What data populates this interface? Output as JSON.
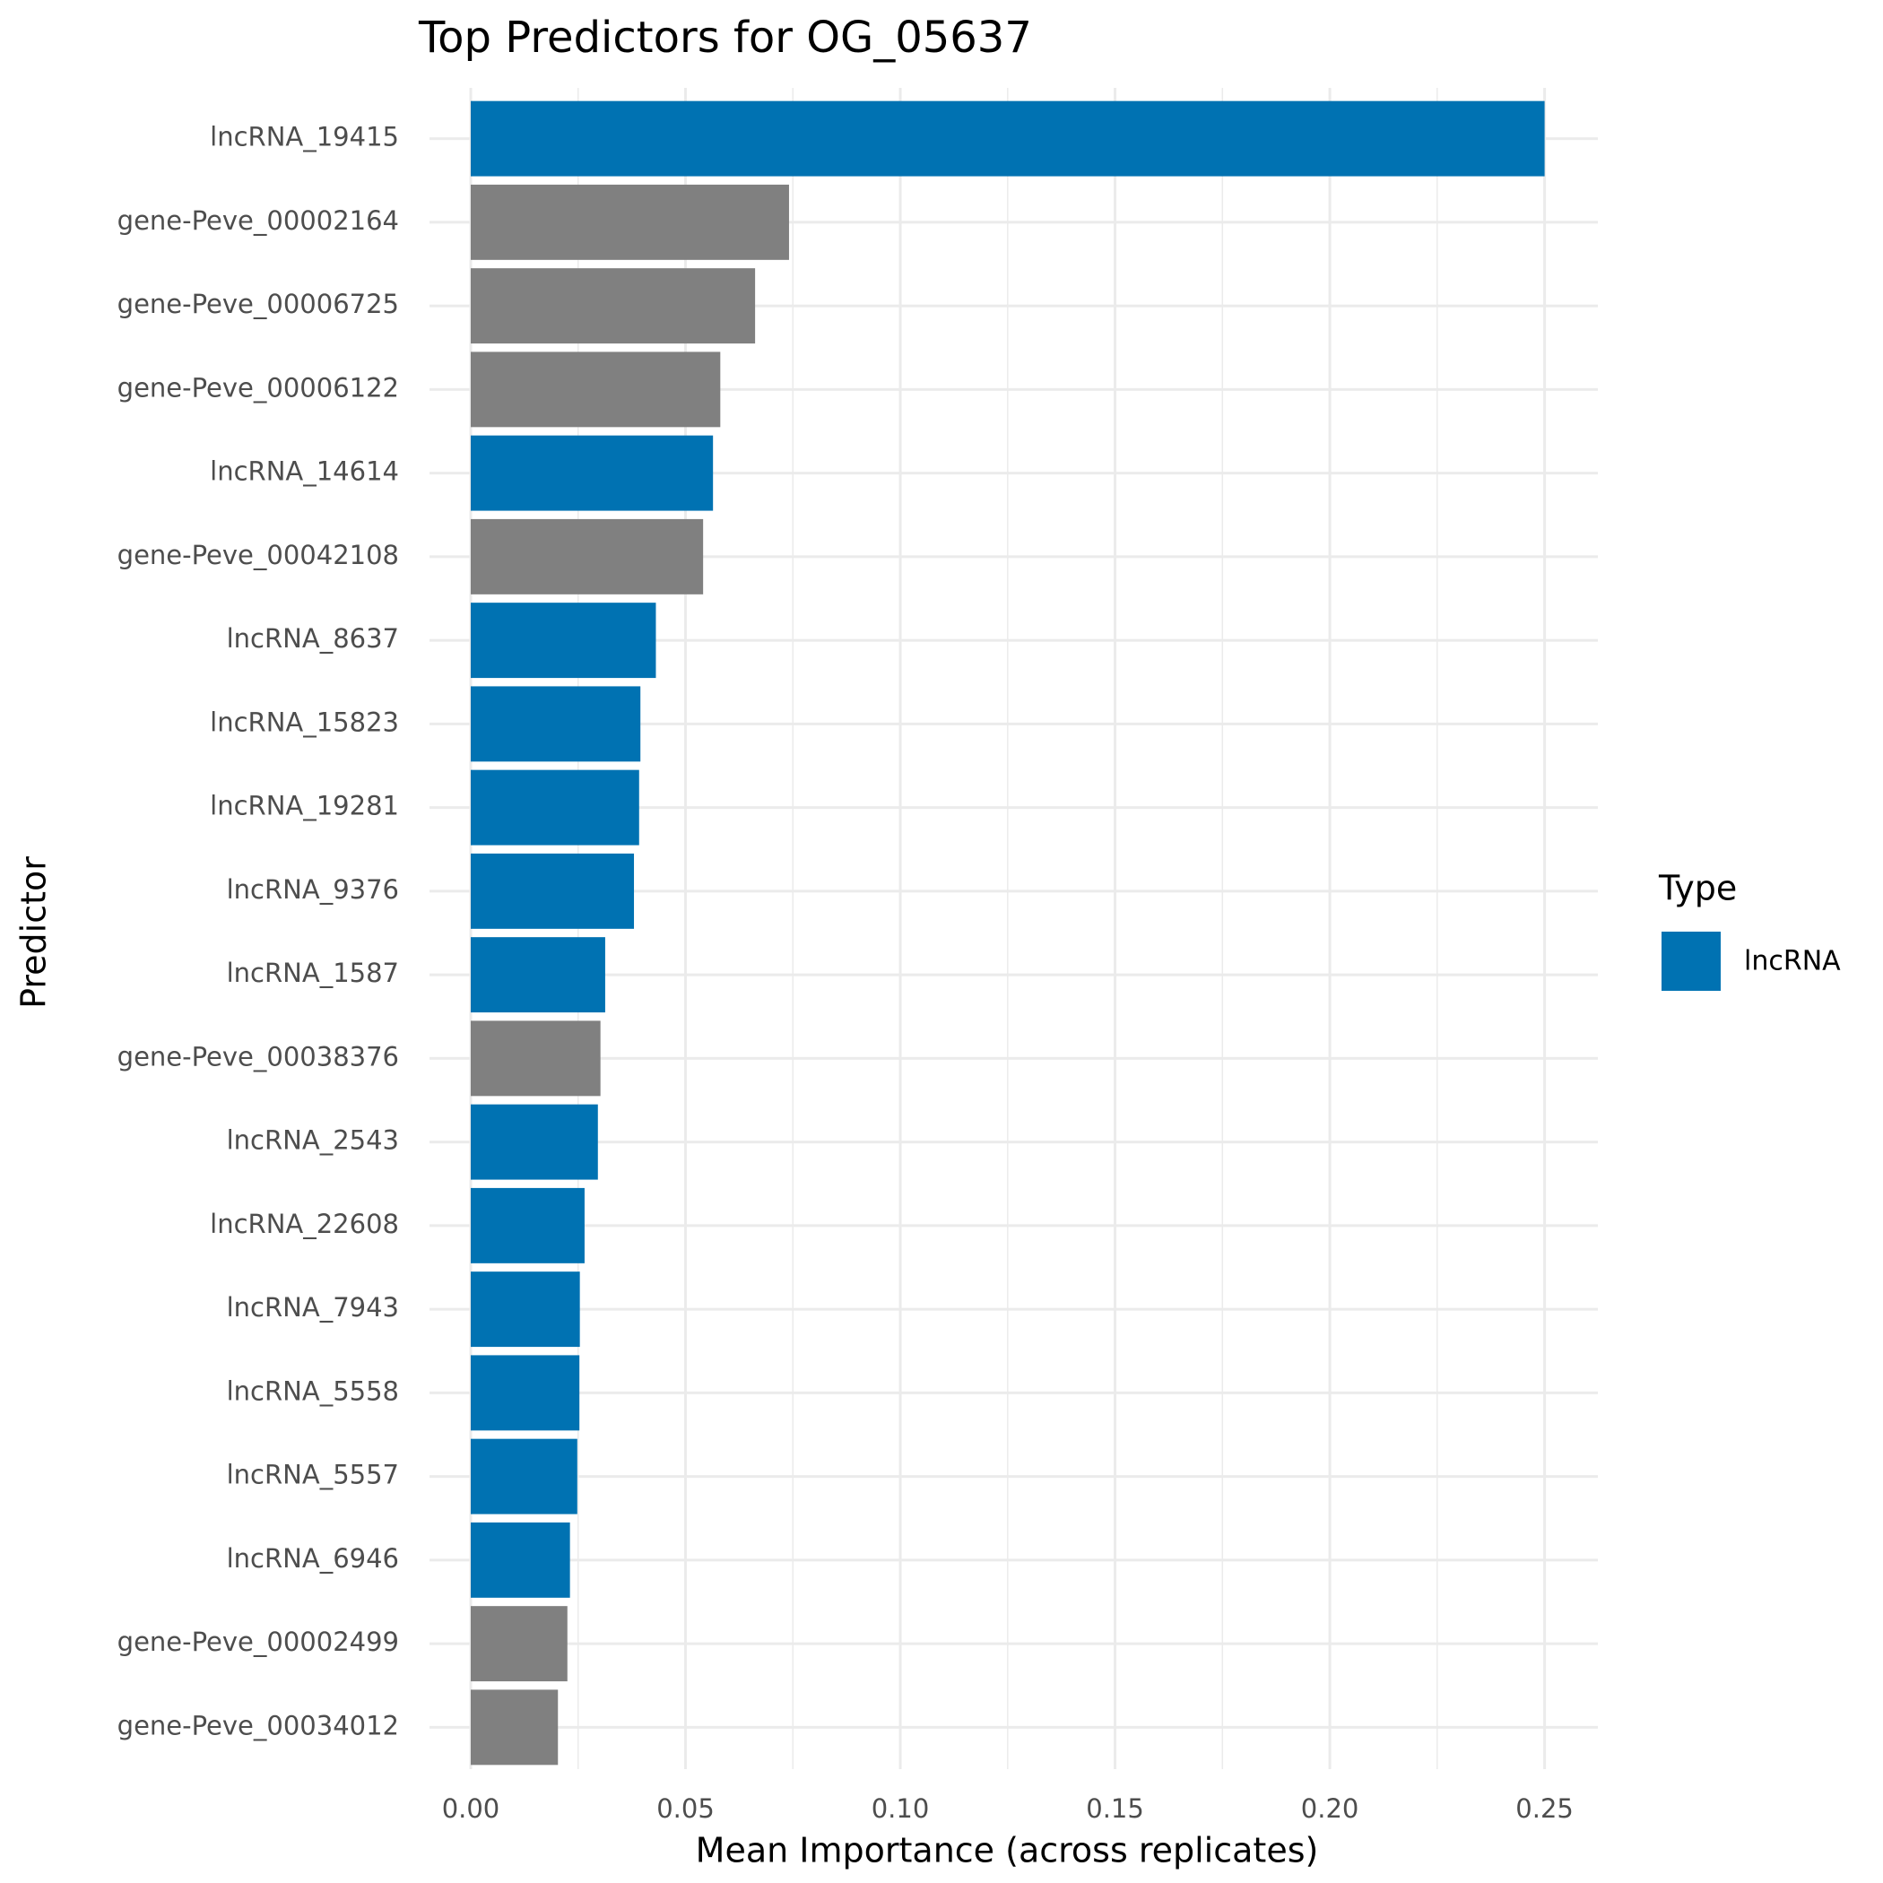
{
  "chart_data": {
    "type": "hbar",
    "title": "Top Predictors for OG_05637",
    "x_label": "Mean Importance (across replicates)",
    "y_label": "Predictor",
    "categories": [
      "lncRNA_19415",
      "gene-Peve_00002164",
      "gene-Peve_00006725",
      "gene-Peve_00006122",
      "lncRNA_14614",
      "gene-Peve_00042108",
      "lncRNA_8637",
      "lncRNA_15823",
      "lncRNA_19281",
      "lncRNA_9376",
      "lncRNA_1587",
      "gene-Peve_00038376",
      "lncRNA_2543",
      "lncRNA_22608",
      "lncRNA_7943",
      "lncRNA_5558",
      "lncRNA_5557",
      "lncRNA_6946",
      "gene-Peve_00002499",
      "gene-Peve_00034012"
    ],
    "values": [
      0.25,
      0.0741,
      0.0662,
      0.0581,
      0.0564,
      0.0541,
      0.0431,
      0.0395,
      0.0392,
      0.038,
      0.0313,
      0.0302,
      0.0296,
      0.0265,
      0.0254,
      0.0253,
      0.0248,
      0.0231,
      0.0225,
      0.0203
    ],
    "bar_types": [
      "lncRNA",
      null,
      null,
      null,
      "lncRNA",
      null,
      "lncRNA",
      "lncRNA",
      "lncRNA",
      "lncRNA",
      "lncRNA",
      null,
      "lncRNA",
      "lncRNA",
      "lncRNA",
      "lncRNA",
      "lncRNA",
      "lncRNA",
      null,
      null
    ],
    "na_color": "#808080",
    "legend": {
      "title": "Type",
      "position": "right",
      "entries": [
        {
          "name": "lncRNA",
          "color": "#0072B2"
        }
      ]
    },
    "xlim": [
      -0.0096,
      0.2624
    ],
    "xticks": [
      {
        "value": 0,
        "label": "0.00"
      },
      0.05,
      {
        "value": 0.1,
        "label": "0.10"
      },
      0.15,
      {
        "value": 0.2,
        "label": "0.20"
      },
      0.25
    ],
    "grid": true
  }
}
